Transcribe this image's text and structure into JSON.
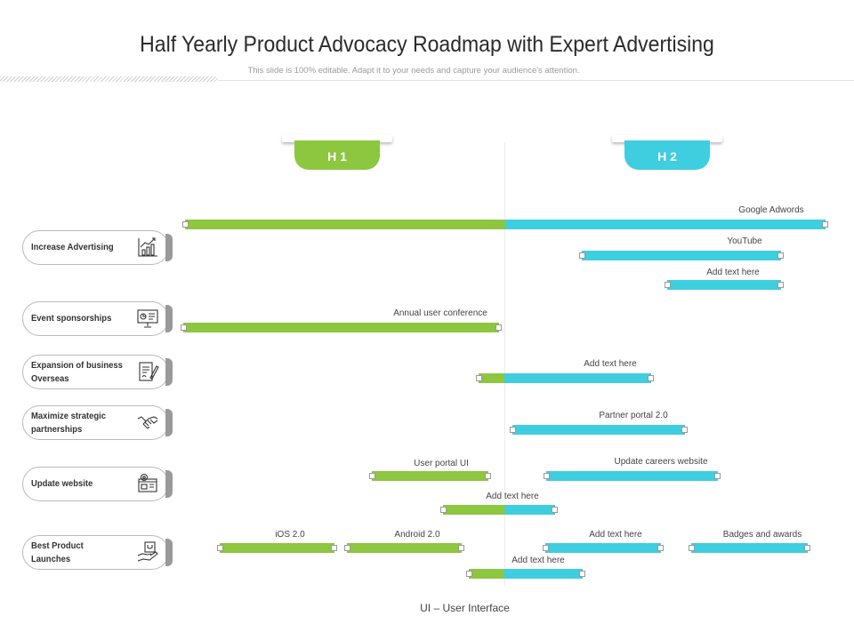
{
  "title": "Half Yearly Product Advocacy Roadmap with Expert Advertising",
  "subtitle": "This slide is 100% editable. Adapt it to your needs and capture your audience's attention.",
  "periods": {
    "h1": "H 1",
    "h2": "H 2"
  },
  "categories": [
    {
      "label": "Increase Advertising",
      "icon": "growth-chart-icon"
    },
    {
      "label": "Event sponsorships",
      "icon": "presentation-board-icon"
    },
    {
      "label": "Expansion of business Overseas",
      "icon": "contract-sign-icon"
    },
    {
      "label": "Maximize strategic partnerships",
      "icon": "handshake-icon"
    },
    {
      "label": "Update website",
      "icon": "web-settings-icon"
    },
    {
      "label": "Best Product Launches",
      "icon": "product-hand-icon"
    }
  ],
  "tasks": [
    {
      "label": "Google Adwords"
    },
    {
      "label": "YouTube"
    },
    {
      "label": "Add text here"
    },
    {
      "label": "Annual user conference"
    },
    {
      "label": "Add text here"
    },
    {
      "label": "Partner portal 2.0"
    },
    {
      "label": "User portal UI"
    },
    {
      "label": "Update careers website"
    },
    {
      "label": "Add text here"
    },
    {
      "label": "iOS 2.0"
    },
    {
      "label": "Android 2.0"
    },
    {
      "label": "Add text here"
    },
    {
      "label": "Badges and awards"
    },
    {
      "label": "Add text here"
    }
  ],
  "colors": {
    "h1": "#8dc63f",
    "h2": "#3fcde0"
  },
  "footnote": "UI – User Interface"
}
